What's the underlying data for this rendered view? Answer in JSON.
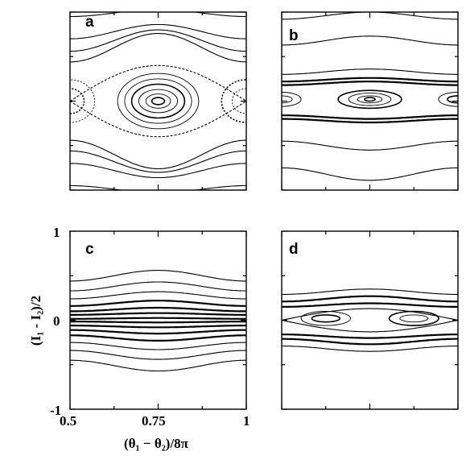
{
  "chart_data": [
    {
      "panel": "a",
      "type": "line",
      "title": "a",
      "xlim": [
        0.5,
        1.0
      ],
      "ylim": [
        -1,
        1
      ],
      "orbits": [
        {
          "kind": "rotational",
          "center": 0.99,
          "amp": 0.04
        },
        {
          "kind": "rotational",
          "center": 0.78,
          "amp": 0.08
        },
        {
          "kind": "rotational",
          "center": 0.68,
          "amp": 0.12
        },
        {
          "kind": "rotational",
          "center": 0.6,
          "amp": 0.16
        },
        {
          "kind": "rotational",
          "center": -0.6,
          "amp": -0.16
        },
        {
          "kind": "rotational",
          "center": -0.68,
          "amp": -0.12
        },
        {
          "kind": "rotational",
          "center": -0.78,
          "amp": -0.08
        },
        {
          "kind": "rotational",
          "center": -0.99,
          "amp": -0.04
        },
        {
          "kind": "separatrix",
          "center": 0,
          "amp": 0.4
        },
        {
          "kind": "island",
          "cx": 0.75,
          "cy": 0,
          "rx": 0.018,
          "ry": 0.04
        },
        {
          "kind": "island",
          "cx": 0.75,
          "cy": 0,
          "rx": 0.035,
          "ry": 0.08
        },
        {
          "kind": "island",
          "cx": 0.75,
          "cy": 0,
          "rx": 0.055,
          "ry": 0.13
        },
        {
          "kind": "island",
          "cx": 0.75,
          "cy": 0,
          "rx": 0.075,
          "ry": 0.19
        },
        {
          "kind": "island",
          "cx": 0.75,
          "cy": 0,
          "rx": 0.095,
          "ry": 0.25
        },
        {
          "kind": "island",
          "cx": 0.75,
          "cy": 0,
          "rx": 0.115,
          "ry": 0.31
        },
        {
          "kind": "island",
          "cx": 0.5,
          "cy": 0,
          "rx": 0.04,
          "ry": 0.14
        },
        {
          "kind": "island",
          "cx": 0.5,
          "cy": 0,
          "rx": 0.07,
          "ry": 0.24
        },
        {
          "kind": "island",
          "cx": 1.0,
          "cy": 0,
          "rx": 0.04,
          "ry": 0.14
        },
        {
          "kind": "island",
          "cx": 1.0,
          "cy": 0,
          "rx": 0.07,
          "ry": 0.24
        }
      ]
    },
    {
      "panel": "b",
      "type": "line",
      "title": "b",
      "xlim": [
        0.5,
        1.0
      ],
      "ylim": [
        -1,
        1
      ],
      "orbits": [
        {
          "kind": "rotational",
          "center": 0.96,
          "amp": 0.04
        },
        {
          "kind": "rotational",
          "center": 0.68,
          "amp": 0.05
        },
        {
          "kind": "rotational",
          "center": 0.33,
          "amp": 0.03
        },
        {
          "kind": "rotational",
          "center": 0.24,
          "amp": 0.02
        },
        {
          "kind": "rotational",
          "center": 0.2,
          "amp": 0.02
        },
        {
          "kind": "rotational",
          "center": -0.18,
          "amp": -0.02
        },
        {
          "kind": "rotational",
          "center": -0.22,
          "amp": -0.02
        },
        {
          "kind": "rotational",
          "center": -0.5,
          "amp": -0.05
        },
        {
          "kind": "rotational",
          "center": -0.82,
          "amp": -0.07
        },
        {
          "kind": "island",
          "cx": 0.75,
          "cy": 0.02,
          "rx": 0.015,
          "ry": 0.02
        },
        {
          "kind": "island",
          "cx": 0.75,
          "cy": 0.02,
          "rx": 0.035,
          "ry": 0.04
        },
        {
          "kind": "island",
          "cx": 0.75,
          "cy": 0.02,
          "rx": 0.06,
          "ry": 0.07
        },
        {
          "kind": "island",
          "cx": 0.75,
          "cy": 0.02,
          "rx": 0.09,
          "ry": 0.1
        },
        {
          "kind": "island",
          "cx": 0.5,
          "cy": 0.02,
          "rx": 0.03,
          "ry": 0.04
        },
        {
          "kind": "island",
          "cx": 0.5,
          "cy": 0.02,
          "rx": 0.055,
          "ry": 0.08
        },
        {
          "kind": "island",
          "cx": 1.0,
          "cy": 0.02,
          "rx": 0.03,
          "ry": 0.04
        },
        {
          "kind": "island",
          "cx": 1.0,
          "cy": 0.02,
          "rx": 0.055,
          "ry": 0.08
        }
      ]
    },
    {
      "panel": "c",
      "type": "line",
      "title": "c",
      "xlabel": "(θ₁ − θ₂)/8π",
      "ylabel": "(I₁ - I₂)/2",
      "xticks": [
        "0.5",
        "0.75",
        "1"
      ],
      "yticks": [
        "-1",
        "0",
        "1"
      ],
      "xlim": [
        0.5,
        1.0
      ],
      "ylim": [
        -1,
        1
      ],
      "orbits": [
        {
          "kind": "rotational",
          "center": 0.5,
          "amp": 0.06
        },
        {
          "kind": "rotational",
          "center": 0.38,
          "amp": 0.05
        },
        {
          "kind": "rotational",
          "center": 0.28,
          "amp": 0.04
        },
        {
          "kind": "rotational",
          "center": 0.19,
          "amp": 0.03
        },
        {
          "kind": "rotational",
          "center": 0.12,
          "amp": 0.02
        },
        {
          "kind": "rotational",
          "center": 0.07,
          "amp": 0.01
        },
        {
          "kind": "rotational",
          "center": 0.02,
          "amp": 0.005
        },
        {
          "kind": "rotational",
          "center": -0.02,
          "amp": -0.005
        },
        {
          "kind": "rotational",
          "center": -0.07,
          "amp": -0.01
        },
        {
          "kind": "rotational",
          "center": -0.13,
          "amp": -0.02
        },
        {
          "kind": "rotational",
          "center": -0.2,
          "amp": -0.03
        },
        {
          "kind": "rotational",
          "center": -0.29,
          "amp": -0.04
        },
        {
          "kind": "rotational",
          "center": -0.39,
          "amp": -0.05
        },
        {
          "kind": "rotational",
          "center": -0.51,
          "amp": -0.06
        }
      ]
    },
    {
      "panel": "d",
      "type": "line",
      "title": "d",
      "xlim": [
        0.5,
        1.0
      ],
      "ylim": [
        -1,
        1
      ],
      "orbits": [
        {
          "kind": "rotational",
          "center": 0.32,
          "amp": 0.03
        },
        {
          "kind": "rotational",
          "center": 0.24,
          "amp": 0.03
        },
        {
          "kind": "rotational",
          "center": 0.17,
          "amp": 0.02
        },
        {
          "kind": "rotational",
          "center": -0.18,
          "amp": -0.02
        },
        {
          "kind": "rotational",
          "center": -0.24,
          "amp": -0.03
        },
        {
          "kind": "rotational",
          "center": -0.32,
          "amp": -0.03
        },
        {
          "kind": "island",
          "cx": 0.625,
          "cy": 0.02,
          "rx": 0.04,
          "ry": 0.04
        },
        {
          "kind": "island",
          "cx": 0.625,
          "cy": 0.02,
          "rx": 0.07,
          "ry": 0.08
        },
        {
          "kind": "island",
          "cx": 0.875,
          "cy": 0.02,
          "rx": 0.04,
          "ry": 0.04
        },
        {
          "kind": "island",
          "cx": 0.875,
          "cy": 0.02,
          "rx": 0.07,
          "ry": 0.08
        },
        {
          "kind": "separatrix",
          "center": 0,
          "amp": 0.13
        }
      ]
    }
  ]
}
